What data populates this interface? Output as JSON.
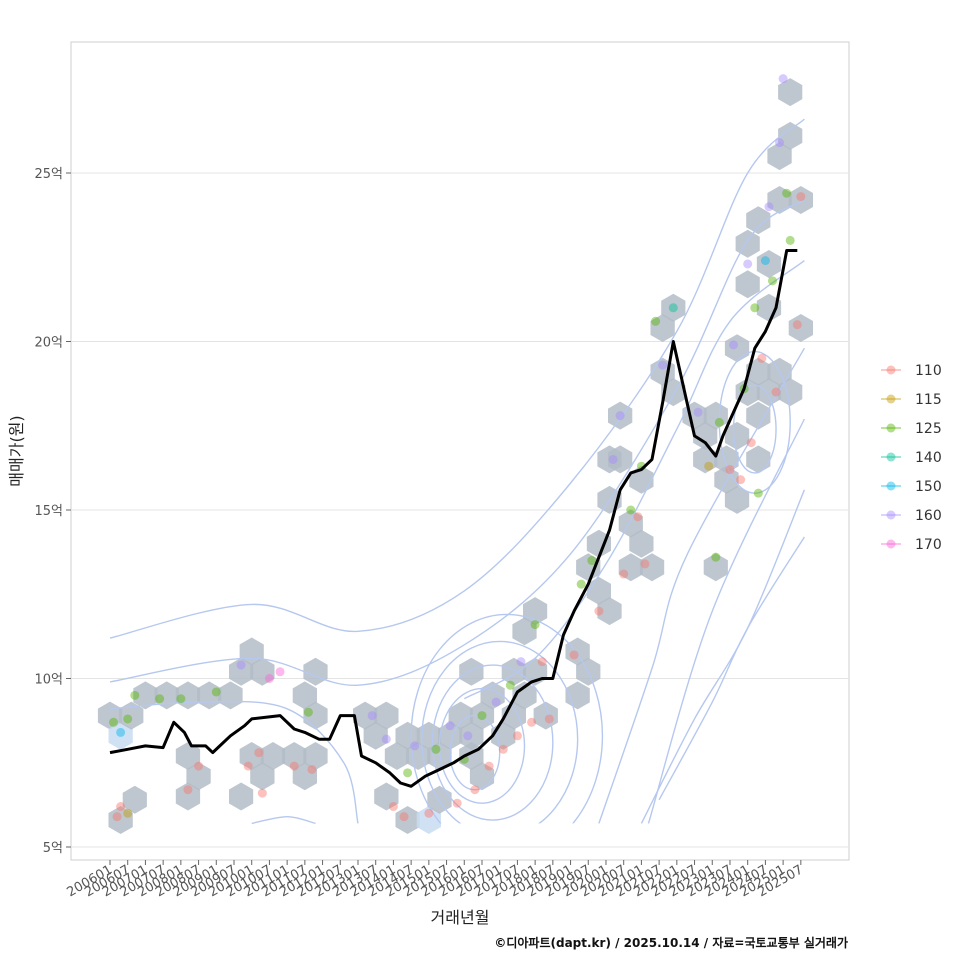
{
  "chart_data": {
    "type": "scatter",
    "layers": [
      "hexbin",
      "density-contour",
      "scatter",
      "line"
    ],
    "title": "",
    "xlabel": "거래년월",
    "ylabel": "매매가(원)",
    "caption": "©디아파트(dapt.kr) / 2025.10.14 / 자료=국토교통부 실거래가",
    "x_range": [
      2006.0,
      2025.9
    ],
    "ylim": [
      4.8,
      29.0
    ],
    "y_ticks": [
      5,
      10,
      15,
      20,
      25
    ],
    "y_tick_labels": [
      "5억",
      "10억",
      "15억",
      "20억",
      "25억"
    ],
    "x_tick_labels": [
      "200601",
      "200607",
      "200701",
      "200707",
      "200801",
      "200807",
      "200901",
      "200907",
      "201001",
      "201007",
      "201101",
      "201107",
      "201201",
      "201207",
      "201301",
      "201307",
      "201401",
      "201407",
      "201501",
      "201507",
      "201601",
      "201607",
      "201701",
      "201707",
      "201801",
      "201807",
      "201901",
      "201907",
      "202001",
      "202007",
      "202101",
      "202107",
      "202201",
      "202207",
      "202301",
      "202307",
      "202401",
      "202407",
      "202501",
      "202507"
    ],
    "legend_title": "",
    "legend": [
      {
        "label": "110",
        "color": "#F8766D"
      },
      {
        "label": "115",
        "color": "#C49A00"
      },
      {
        "label": "125",
        "color": "#53B400"
      },
      {
        "label": "140",
        "color": "#00C094"
      },
      {
        "label": "150",
        "color": "#00B6EB"
      },
      {
        "label": "160",
        "color": "#A58AFF"
      },
      {
        "label": "170",
        "color": "#FB61D7"
      }
    ],
    "colors": {
      "hex_fill": "#b3bcc7",
      "hex_alt": "#c9dcf2",
      "contour": "#b6c8ef",
      "line": "#000000"
    },
    "median_line": [
      [
        2006.0,
        7.8
      ],
      [
        2006.5,
        7.9
      ],
      [
        2007.0,
        8.0
      ],
      [
        2007.5,
        7.95
      ],
      [
        2007.8,
        8.7
      ],
      [
        2008.1,
        8.4
      ],
      [
        2008.3,
        8.0
      ],
      [
        2008.7,
        8.0
      ],
      [
        2008.9,
        7.8
      ],
      [
        2009.1,
        8.0
      ],
      [
        2009.4,
        8.3
      ],
      [
        2009.8,
        8.6
      ],
      [
        2010.0,
        8.8
      ],
      [
        2010.4,
        8.85
      ],
      [
        2010.8,
        8.9
      ],
      [
        2011.2,
        8.5
      ],
      [
        2011.5,
        8.4
      ],
      [
        2011.9,
        8.2
      ],
      [
        2012.2,
        8.2
      ],
      [
        2012.5,
        8.9
      ],
      [
        2012.9,
        8.9
      ],
      [
        2013.1,
        7.7
      ],
      [
        2013.5,
        7.5
      ],
      [
        2013.9,
        7.2
      ],
      [
        2014.2,
        6.9
      ],
      [
        2014.5,
        6.8
      ],
      [
        2014.9,
        7.1
      ],
      [
        2015.3,
        7.3
      ],
      [
        2015.7,
        7.5
      ],
      [
        2016.0,
        7.7
      ],
      [
        2016.4,
        7.9
      ],
      [
        2016.8,
        8.3
      ],
      [
        2017.1,
        8.8
      ],
      [
        2017.5,
        9.6
      ],
      [
        2017.9,
        9.9
      ],
      [
        2018.2,
        10.0
      ],
      [
        2018.5,
        10.0
      ],
      [
        2018.8,
        11.3
      ],
      [
        2019.1,
        12.0
      ],
      [
        2019.5,
        12.8
      ],
      [
        2019.8,
        13.6
      ],
      [
        2020.1,
        14.4
      ],
      [
        2020.4,
        15.6
      ],
      [
        2020.7,
        16.1
      ],
      [
        2021.0,
        16.2
      ],
      [
        2021.3,
        16.5
      ],
      [
        2021.6,
        18.2
      ],
      [
        2021.9,
        20.0
      ],
      [
        2022.2,
        18.6
      ],
      [
        2022.5,
        17.2
      ],
      [
        2022.8,
        17.0
      ],
      [
        2023.1,
        16.6
      ],
      [
        2023.3,
        17.2
      ],
      [
        2023.6,
        17.9
      ],
      [
        2023.9,
        18.6
      ],
      [
        2024.2,
        19.8
      ],
      [
        2024.5,
        20.3
      ],
      [
        2024.8,
        21.0
      ],
      [
        2025.1,
        22.7
      ],
      [
        2025.4,
        22.7
      ]
    ],
    "scatter_points": [
      {
        "x": 2006.1,
        "y": 8.7,
        "s": "125"
      },
      {
        "x": 2006.3,
        "y": 8.4,
        "s": "150"
      },
      {
        "x": 2006.5,
        "y": 8.8,
        "s": "125"
      },
      {
        "x": 2006.7,
        "y": 9.5,
        "s": "125"
      },
      {
        "x": 2006.3,
        "y": 6.2,
        "s": "110"
      },
      {
        "x": 2006.5,
        "y": 6.0,
        "s": "115"
      },
      {
        "x": 2006.2,
        "y": 5.9,
        "s": "110"
      },
      {
        "x": 2007.4,
        "y": 9.4,
        "s": "125"
      },
      {
        "x": 2008.0,
        "y": 9.4,
        "s": "125"
      },
      {
        "x": 2008.2,
        "y": 6.7,
        "s": "110"
      },
      {
        "x": 2008.5,
        "y": 7.4,
        "s": "110"
      },
      {
        "x": 2009.0,
        "y": 9.6,
        "s": "125"
      },
      {
        "x": 2009.7,
        "y": 10.4,
        "s": "160"
      },
      {
        "x": 2009.9,
        "y": 7.4,
        "s": "110"
      },
      {
        "x": 2010.2,
        "y": 7.8,
        "s": "110"
      },
      {
        "x": 2010.5,
        "y": 10.0,
        "s": "170"
      },
      {
        "x": 2010.3,
        "y": 6.6,
        "s": "110"
      },
      {
        "x": 2010.8,
        "y": 10.2,
        "s": "170"
      },
      {
        "x": 2011.2,
        "y": 7.4,
        "s": "110"
      },
      {
        "x": 2011.6,
        "y": 9.0,
        "s": "125"
      },
      {
        "x": 2011.7,
        "y": 7.3,
        "s": "110"
      },
      {
        "x": 2013.4,
        "y": 8.9,
        "s": "160"
      },
      {
        "x": 2013.8,
        "y": 8.2,
        "s": "160"
      },
      {
        "x": 2014.0,
        "y": 6.2,
        "s": "110"
      },
      {
        "x": 2014.4,
        "y": 7.2,
        "s": "125"
      },
      {
        "x": 2014.6,
        "y": 8.0,
        "s": "160"
      },
      {
        "x": 2014.3,
        "y": 5.9,
        "s": "110"
      },
      {
        "x": 2015.0,
        "y": 6.0,
        "s": "110"
      },
      {
        "x": 2015.2,
        "y": 7.9,
        "s": "125"
      },
      {
        "x": 2015.6,
        "y": 8.6,
        "s": "160"
      },
      {
        "x": 2015.8,
        "y": 6.3,
        "s": "110"
      },
      {
        "x": 2016.0,
        "y": 7.6,
        "s": "125"
      },
      {
        "x": 2016.1,
        "y": 8.3,
        "s": "160"
      },
      {
        "x": 2016.3,
        "y": 6.7,
        "s": "110"
      },
      {
        "x": 2016.5,
        "y": 8.9,
        "s": "125"
      },
      {
        "x": 2016.7,
        "y": 7.4,
        "s": "110"
      },
      {
        "x": 2016.9,
        "y": 9.3,
        "s": "160"
      },
      {
        "x": 2017.1,
        "y": 7.9,
        "s": "110"
      },
      {
        "x": 2017.3,
        "y": 9.8,
        "s": "125"
      },
      {
        "x": 2017.5,
        "y": 8.3,
        "s": "110"
      },
      {
        "x": 2017.6,
        "y": 10.5,
        "s": "160"
      },
      {
        "x": 2017.9,
        "y": 8.7,
        "s": "110"
      },
      {
        "x": 2018.0,
        "y": 11.6,
        "s": "125"
      },
      {
        "x": 2018.2,
        "y": 10.5,
        "s": "110"
      },
      {
        "x": 2018.4,
        "y": 8.8,
        "s": "110"
      },
      {
        "x": 2019.1,
        "y": 10.7,
        "s": "110"
      },
      {
        "x": 2019.3,
        "y": 12.8,
        "s": "125"
      },
      {
        "x": 2019.6,
        "y": 13.5,
        "s": "125"
      },
      {
        "x": 2019.8,
        "y": 12.0,
        "s": "110"
      },
      {
        "x": 2020.2,
        "y": 16.5,
        "s": "160"
      },
      {
        "x": 2020.4,
        "y": 17.8,
        "s": "160"
      },
      {
        "x": 2020.5,
        "y": 13.1,
        "s": "110"
      },
      {
        "x": 2020.7,
        "y": 15.0,
        "s": "125"
      },
      {
        "x": 2020.9,
        "y": 14.8,
        "s": "110"
      },
      {
        "x": 2021.0,
        "y": 16.3,
        "s": "125"
      },
      {
        "x": 2021.1,
        "y": 13.4,
        "s": "110"
      },
      {
        "x": 2021.4,
        "y": 20.6,
        "s": "125"
      },
      {
        "x": 2021.6,
        "y": 19.3,
        "s": "160"
      },
      {
        "x": 2021.9,
        "y": 21.0,
        "s": "140"
      },
      {
        "x": 2022.6,
        "y": 17.9,
        "s": "160"
      },
      {
        "x": 2022.9,
        "y": 16.3,
        "s": "115"
      },
      {
        "x": 2023.1,
        "y": 13.6,
        "s": "125"
      },
      {
        "x": 2023.2,
        "y": 17.6,
        "s": "125"
      },
      {
        "x": 2023.5,
        "y": 16.2,
        "s": "110"
      },
      {
        "x": 2023.6,
        "y": 19.9,
        "s": "160"
      },
      {
        "x": 2023.8,
        "y": 15.9,
        "s": "110"
      },
      {
        "x": 2023.9,
        "y": 18.6,
        "s": "125"
      },
      {
        "x": 2024.0,
        "y": 22.3,
        "s": "160"
      },
      {
        "x": 2024.1,
        "y": 17.0,
        "s": "110"
      },
      {
        "x": 2024.2,
        "y": 21.0,
        "s": "125"
      },
      {
        "x": 2024.3,
        "y": 15.5,
        "s": "125"
      },
      {
        "x": 2024.4,
        "y": 19.5,
        "s": "110"
      },
      {
        "x": 2024.5,
        "y": 22.4,
        "s": "150"
      },
      {
        "x": 2024.6,
        "y": 24.0,
        "s": "160"
      },
      {
        "x": 2024.7,
        "y": 21.8,
        "s": "125"
      },
      {
        "x": 2024.8,
        "y": 18.5,
        "s": "110"
      },
      {
        "x": 2024.9,
        "y": 25.9,
        "s": "160"
      },
      {
        "x": 2025.0,
        "y": 27.8,
        "s": "160"
      },
      {
        "x": 2025.1,
        "y": 24.4,
        "s": "125"
      },
      {
        "x": 2025.2,
        "y": 23.0,
        "s": "125"
      },
      {
        "x": 2025.4,
        "y": 20.5,
        "s": "110"
      },
      {
        "x": 2025.5,
        "y": 24.3,
        "s": "110"
      }
    ],
    "hexbins": [
      {
        "x": 2006.0,
        "y": 8.9
      },
      {
        "x": 2006.3,
        "y": 8.3,
        "alt": true
      },
      {
        "x": 2006.6,
        "y": 8.9
      },
      {
        "x": 2006.3,
        "y": 5.8
      },
      {
        "x": 2006.7,
        "y": 6.4
      },
      {
        "x": 2007.0,
        "y": 9.5
      },
      {
        "x": 2007.6,
        "y": 9.5
      },
      {
        "x": 2008.2,
        "y": 9.5
      },
      {
        "x": 2008.2,
        "y": 7.7
      },
      {
        "x": 2008.5,
        "y": 7.1
      },
      {
        "x": 2008.2,
        "y": 6.5
      },
      {
        "x": 2008.8,
        "y": 9.5
      },
      {
        "x": 2009.4,
        "y": 9.5
      },
      {
        "x": 2009.7,
        "y": 10.2
      },
      {
        "x": 2010.0,
        "y": 10.8
      },
      {
        "x": 2010.3,
        "y": 10.2
      },
      {
        "x": 2010.0,
        "y": 7.7
      },
      {
        "x": 2010.3,
        "y": 7.1
      },
      {
        "x": 2009.7,
        "y": 6.5
      },
      {
        "x": 2010.6,
        "y": 7.7
      },
      {
        "x": 2011.2,
        "y": 7.7
      },
      {
        "x": 2011.5,
        "y": 7.1
      },
      {
        "x": 2011.8,
        "y": 7.7
      },
      {
        "x": 2011.5,
        "y": 9.5
      },
      {
        "x": 2011.8,
        "y": 10.2
      },
      {
        "x": 2011.8,
        "y": 8.9
      },
      {
        "x": 2013.2,
        "y": 8.9
      },
      {
        "x": 2013.8,
        "y": 8.9
      },
      {
        "x": 2013.5,
        "y": 8.3
      },
      {
        "x": 2013.8,
        "y": 6.5
      },
      {
        "x": 2014.1,
        "y": 7.7
      },
      {
        "x": 2014.4,
        "y": 8.3
      },
      {
        "x": 2014.7,
        "y": 7.7
      },
      {
        "x": 2014.4,
        "y": 5.8
      },
      {
        "x": 2015.0,
        "y": 8.3
      },
      {
        "x": 2015.0,
        "y": 5.8,
        "alt": true
      },
      {
        "x": 2015.3,
        "y": 7.7
      },
      {
        "x": 2015.6,
        "y": 8.3
      },
      {
        "x": 2015.3,
        "y": 6.4
      },
      {
        "x": 2015.9,
        "y": 8.9
      },
      {
        "x": 2016.2,
        "y": 8.3
      },
      {
        "x": 2016.2,
        "y": 7.7
      },
      {
        "x": 2016.5,
        "y": 8.9
      },
      {
        "x": 2016.5,
        "y": 7.1
      },
      {
        "x": 2016.2,
        "y": 10.2
      },
      {
        "x": 2016.8,
        "y": 9.5
      },
      {
        "x": 2017.1,
        "y": 8.3
      },
      {
        "x": 2017.4,
        "y": 10.2
      },
      {
        "x": 2017.4,
        "y": 8.9
      },
      {
        "x": 2017.7,
        "y": 9.5
      },
      {
        "x": 2017.7,
        "y": 11.4
      },
      {
        "x": 2018.0,
        "y": 12.0
      },
      {
        "x": 2018.0,
        "y": 10.2
      },
      {
        "x": 2018.3,
        "y": 8.9
      },
      {
        "x": 2019.2,
        "y": 10.8
      },
      {
        "x": 2019.5,
        "y": 10.2
      },
      {
        "x": 2019.2,
        "y": 9.5
      },
      {
        "x": 2019.5,
        "y": 13.3
      },
      {
        "x": 2019.8,
        "y": 12.6
      },
      {
        "x": 2019.8,
        "y": 14.0
      },
      {
        "x": 2020.1,
        "y": 12.0
      },
      {
        "x": 2020.1,
        "y": 15.3
      },
      {
        "x": 2020.1,
        "y": 16.5
      },
      {
        "x": 2020.4,
        "y": 17.8
      },
      {
        "x": 2020.4,
        "y": 16.5
      },
      {
        "x": 2020.7,
        "y": 14.6
      },
      {
        "x": 2020.7,
        "y": 13.3
      },
      {
        "x": 2021.0,
        "y": 14.0
      },
      {
        "x": 2021.0,
        "y": 15.9
      },
      {
        "x": 2021.3,
        "y": 13.3
      },
      {
        "x": 2021.6,
        "y": 20.4
      },
      {
        "x": 2021.6,
        "y": 19.1
      },
      {
        "x": 2021.9,
        "y": 21.0
      },
      {
        "x": 2021.9,
        "y": 18.5
      },
      {
        "x": 2022.5,
        "y": 17.8
      },
      {
        "x": 2022.8,
        "y": 17.2
      },
      {
        "x": 2022.8,
        "y": 16.5
      },
      {
        "x": 2023.1,
        "y": 13.3
      },
      {
        "x": 2023.1,
        "y": 17.8
      },
      {
        "x": 2023.4,
        "y": 16.5
      },
      {
        "x": 2023.4,
        "y": 15.9
      },
      {
        "x": 2023.7,
        "y": 17.2
      },
      {
        "x": 2023.7,
        "y": 15.3
      },
      {
        "x": 2023.7,
        "y": 19.8
      },
      {
        "x": 2024.0,
        "y": 18.5
      },
      {
        "x": 2024.0,
        "y": 21.7
      },
      {
        "x": 2024.0,
        "y": 22.9
      },
      {
        "x": 2024.3,
        "y": 17.8
      },
      {
        "x": 2024.3,
        "y": 16.5
      },
      {
        "x": 2024.3,
        "y": 19.1
      },
      {
        "x": 2024.3,
        "y": 23.6
      },
      {
        "x": 2024.6,
        "y": 22.3
      },
      {
        "x": 2024.6,
        "y": 18.5
      },
      {
        "x": 2024.6,
        "y": 21.0
      },
      {
        "x": 2024.9,
        "y": 25.5
      },
      {
        "x": 2024.9,
        "y": 24.2
      },
      {
        "x": 2024.9,
        "y": 19.1
      },
      {
        "x": 2025.2,
        "y": 27.4
      },
      {
        "x": 2025.2,
        "y": 26.1
      },
      {
        "x": 2025.2,
        "y": 18.5
      },
      {
        "x": 2025.5,
        "y": 24.2
      },
      {
        "x": 2025.5,
        "y": 20.4
      }
    ],
    "contours": [
      [
        [
          2006.0,
          11.2
        ],
        [
          2010.0,
          12.2
        ],
        [
          2013.0,
          11.4
        ],
        [
          2016.0,
          12.6
        ],
        [
          2019.0,
          15.8
        ],
        [
          2022.0,
          20.3
        ],
        [
          2024.0,
          25.0
        ],
        [
          2025.6,
          26.6
        ]
      ],
      [
        [
          2006.0,
          9.9
        ],
        [
          2010.0,
          10.6
        ],
        [
          2013.0,
          9.8
        ],
        [
          2016.0,
          11.0
        ],
        [
          2019.0,
          13.7
        ],
        [
          2022.0,
          18.6
        ],
        [
          2024.0,
          23.0
        ],
        [
          2025.6,
          24.2
        ]
      ],
      [
        [
          2006.0,
          9.1
        ],
        [
          2008.5,
          9.3
        ],
        [
          2011.0,
          9.1
        ],
        [
          2012.6,
          7.5
        ],
        [
          2013.0,
          5.7
        ]
      ],
      [
        [
          2010.0,
          5.7
        ],
        [
          2011.0,
          5.9
        ],
        [
          2011.8,
          5.7
        ]
      ],
      [
        [
          2016.0,
          9.4
        ],
        [
          2018.0,
          10.6
        ],
        [
          2020.0,
          13.4
        ],
        [
          2022.0,
          17.4
        ],
        [
          2023.5,
          20.6
        ],
        [
          2025.6,
          22.4
        ]
      ],
      [
        [
          2021.5,
          6.4
        ],
        [
          2023.0,
          9.3
        ],
        [
          2024.0,
          11.5
        ],
        [
          2025.6,
          14.2
        ]
      ],
      [
        [
          2021.0,
          5.7
        ],
        [
          2022.5,
          8.8
        ],
        [
          2024.0,
          11.5
        ],
        [
          2025.6,
          15.6
        ]
      ],
      [
        [
          2021.2,
          5.7
        ],
        [
          2023.0,
          12.0
        ],
        [
          2025.6,
          17.7
        ]
      ],
      [
        [
          2019.8,
          5.7
        ],
        [
          2021.3,
          10.3
        ],
        [
          2022.3,
          13.7
        ],
        [
          2025.6,
          19.8
        ]
      ]
    ],
    "contour_rings": [
      {
        "cx": 2016.3,
        "cy": 7.8,
        "rx": 0.7,
        "ry": 1.1
      },
      {
        "cx": 2016.5,
        "cy": 8.0,
        "rx": 1.2,
        "ry": 1.7
      },
      {
        "cx": 2016.8,
        "cy": 8.1,
        "rx": 1.7,
        "ry": 2.3
      },
      {
        "cx": 2017.0,
        "cy": 8.2,
        "rx": 2.2,
        "ry": 2.9
      },
      {
        "cx": 2017.2,
        "cy": 8.3,
        "rx": 2.7,
        "ry": 3.6
      },
      {
        "cx": 2024.2,
        "cy": 17.4,
        "rx": 0.6,
        "ry": 1.3
      },
      {
        "cx": 2024.2,
        "cy": 17.6,
        "rx": 1.0,
        "ry": 2.1
      }
    ]
  }
}
